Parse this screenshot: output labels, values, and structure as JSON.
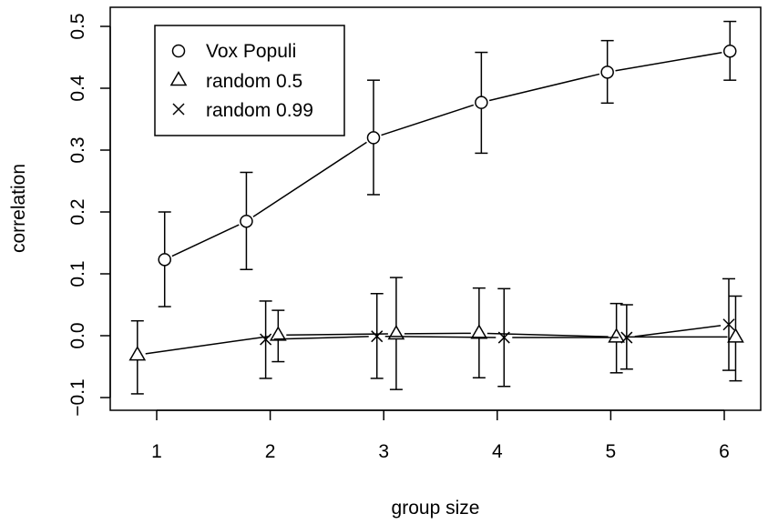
{
  "chart_data": {
    "type": "line",
    "title": "",
    "xlabel": "group size",
    "ylabel": "correlation",
    "xlim": [
      0.6,
      6.3
    ],
    "ylim": [
      -0.12,
      0.52
    ],
    "x_ticks": [
      1,
      2,
      3,
      4,
      5,
      6
    ],
    "x_tick_labels": [
      "1",
      "2",
      "3",
      "4",
      "5",
      "6"
    ],
    "y_ticks": [
      -0.1,
      0.0,
      0.1,
      0.2,
      0.3,
      0.4,
      0.5
    ],
    "y_tick_labels": [
      "−0.1",
      "0.0",
      "0.1",
      "0.2",
      "0.3",
      "0.4",
      "0.5"
    ],
    "legend_position": "top-left",
    "grid": false,
    "series": [
      {
        "name": "Vox Populi",
        "marker": "circle",
        "points": [
          {
            "x": 1.07,
            "y": 0.123,
            "lo": 0.047,
            "hi": 0.2
          },
          {
            "x": 1.79,
            "y": 0.185,
            "lo": 0.107,
            "hi": 0.264
          },
          {
            "x": 2.91,
            "y": 0.32,
            "lo": 0.228,
            "hi": 0.413
          },
          {
            "x": 3.86,
            "y": 0.377,
            "lo": 0.295,
            "hi": 0.458
          },
          {
            "x": 4.97,
            "y": 0.426,
            "lo": 0.376,
            "hi": 0.477
          },
          {
            "x": 6.05,
            "y": 0.46,
            "lo": 0.413,
            "hi": 0.508
          }
        ]
      },
      {
        "name": "random 0.5",
        "marker": "triangle",
        "points": [
          {
            "x": 0.83,
            "y": -0.031,
            "lo": -0.094,
            "hi": 0.024
          },
          {
            "x": 2.07,
            "y": 0.001,
            "lo": -0.042,
            "hi": 0.041
          },
          {
            "x": 3.11,
            "y": 0.003,
            "lo": -0.087,
            "hi": 0.094
          },
          {
            "x": 3.84,
            "y": 0.004,
            "lo": -0.068,
            "hi": 0.077
          },
          {
            "x": 5.05,
            "y": -0.002,
            "lo": -0.06,
            "hi": 0.052
          },
          {
            "x": 6.1,
            "y": -0.002,
            "lo": -0.073,
            "hi": 0.064
          }
        ]
      },
      {
        "name": "random 0.99",
        "marker": "cross",
        "points": [
          {
            "x": 1.96,
            "y": -0.006,
            "lo": -0.069,
            "hi": 0.056
          },
          {
            "x": 2.94,
            "y": -0.001,
            "lo": -0.069,
            "hi": 0.068
          },
          {
            "x": 4.06,
            "y": -0.003,
            "lo": -0.082,
            "hi": 0.076
          },
          {
            "x": 5.14,
            "y": -0.003,
            "lo": -0.054,
            "hi": 0.05
          },
          {
            "x": 6.04,
            "y": 0.018,
            "lo": -0.056,
            "hi": 0.092
          }
        ]
      }
    ]
  }
}
